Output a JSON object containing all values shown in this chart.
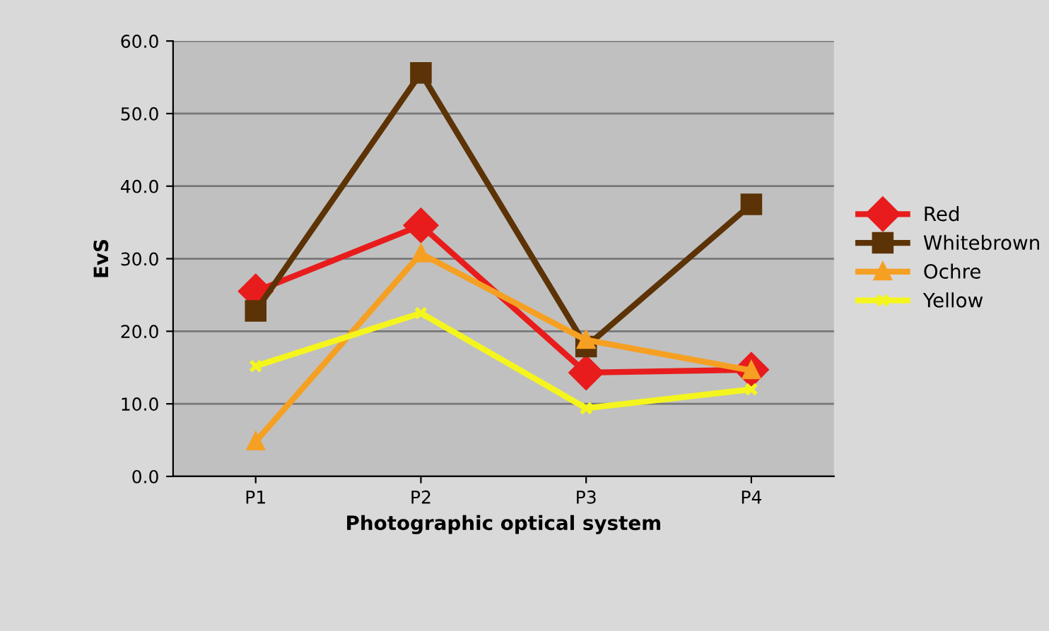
{
  "chart_data": {
    "type": "line",
    "xlabel": "Photographic optical system",
    "ylabel": "EvS",
    "categories": [
      "P1",
      "P2",
      "P3",
      "P4"
    ],
    "series": [
      {
        "name": "Red",
        "color": "#e81c1c",
        "marker": "diamond",
        "values": [
          25.5,
          34.6,
          14.3,
          14.7
        ]
      },
      {
        "name": "Whitebrown",
        "color": "#5c3306",
        "marker": "square",
        "values": [
          22.8,
          55.6,
          17.9,
          37.5
        ]
      },
      {
        "name": "Ochre",
        "color": "#f5a023",
        "marker": "triangle",
        "values": [
          4.8,
          30.7,
          18.8,
          14.6
        ]
      },
      {
        "name": "Yellow",
        "color": "#f5f51e",
        "marker": "cross",
        "values": [
          15.2,
          22.5,
          9.4,
          12.0
        ]
      }
    ],
    "ylim": [
      0,
      60
    ],
    "yticks": [
      {
        "value": 0,
        "label": "0.0"
      },
      {
        "value": 10,
        "label": "10.0"
      },
      {
        "value": 20,
        "label": "20.0"
      },
      {
        "value": 30,
        "label": "30.0"
      },
      {
        "value": 40,
        "label": "40.0"
      },
      {
        "value": 50,
        "label": "50.0"
      },
      {
        "value": 60,
        "label": "60.0"
      }
    ],
    "grid": "y",
    "legend": "right"
  }
}
